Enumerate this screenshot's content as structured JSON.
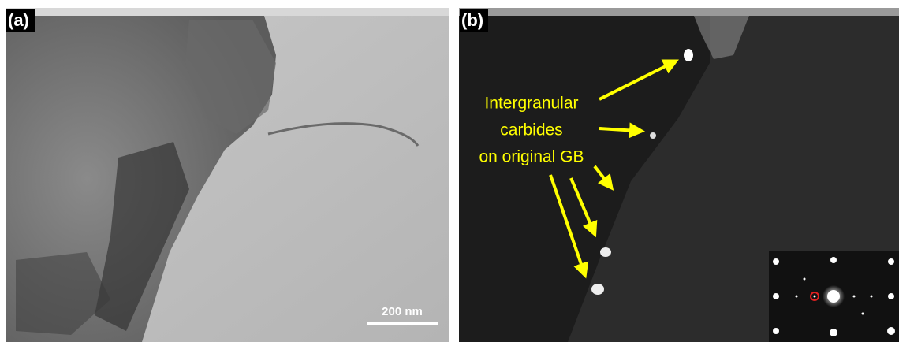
{
  "panels": [
    {
      "label": "(a)",
      "scale_bar": "200 nm"
    },
    {
      "label": "(b)",
      "annotation": [
        "Intergranular",
        "carbides",
        "on original GB"
      ]
    }
  ]
}
